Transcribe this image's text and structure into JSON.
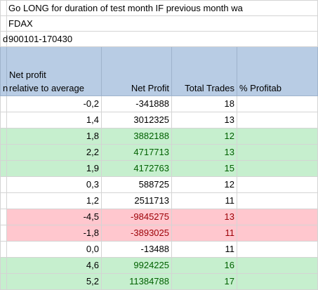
{
  "info": {
    "strategy": {
      "label": "",
      "value": "Go LONG for duration of test month IF previous month wa"
    },
    "symbol": {
      "label": "",
      "value": "FDAX"
    },
    "period": {
      "label": "d",
      "value": "900101-170430"
    }
  },
  "columns": {
    "first_fragment": "n",
    "relative_line1": "Net profit",
    "relative_line2": "relative to average",
    "net_profit": "Net Profit",
    "total_trades": "Total Trades",
    "pct_profitable": "% Profitab"
  },
  "rows": [
    {
      "relative": "-0,2",
      "net_profit": "-341888",
      "trades": "18",
      "style": "plain"
    },
    {
      "relative": "1,4",
      "net_profit": "3012325",
      "trades": "13",
      "style": "plain"
    },
    {
      "relative": "1,8",
      "net_profit": "3882188",
      "trades": "12",
      "style": "green"
    },
    {
      "relative": "2,2",
      "net_profit": "4717713",
      "trades": "13",
      "style": "green"
    },
    {
      "relative": "1,9",
      "net_profit": "4172763",
      "trades": "15",
      "style": "green"
    },
    {
      "relative": "0,3",
      "net_profit": "588725",
      "trades": "12",
      "style": "plain"
    },
    {
      "relative": "1,2",
      "net_profit": "2511713",
      "trades": "11",
      "style": "plain"
    },
    {
      "relative": "-4,5",
      "net_profit": "-9845275",
      "trades": "13",
      "style": "red"
    },
    {
      "relative": "-1,8",
      "net_profit": "-3893025",
      "trades": "11",
      "style": "red"
    },
    {
      "relative": "0,0",
      "net_profit": "-13488",
      "trades": "11",
      "style": "plain"
    },
    {
      "relative": "4,6",
      "net_profit": "9924225",
      "trades": "16",
      "style": "green"
    },
    {
      "relative": "5,2",
      "net_profit": "11384788",
      "trades": "17",
      "style": "green"
    }
  ],
  "colors": {
    "header_fill": "#b8cce4",
    "positive_fill": "#c6efce",
    "positive_text": "#006100",
    "negative_fill": "#ffc7ce",
    "negative_text": "#9c0006",
    "gridline": "#d4d4d4"
  }
}
